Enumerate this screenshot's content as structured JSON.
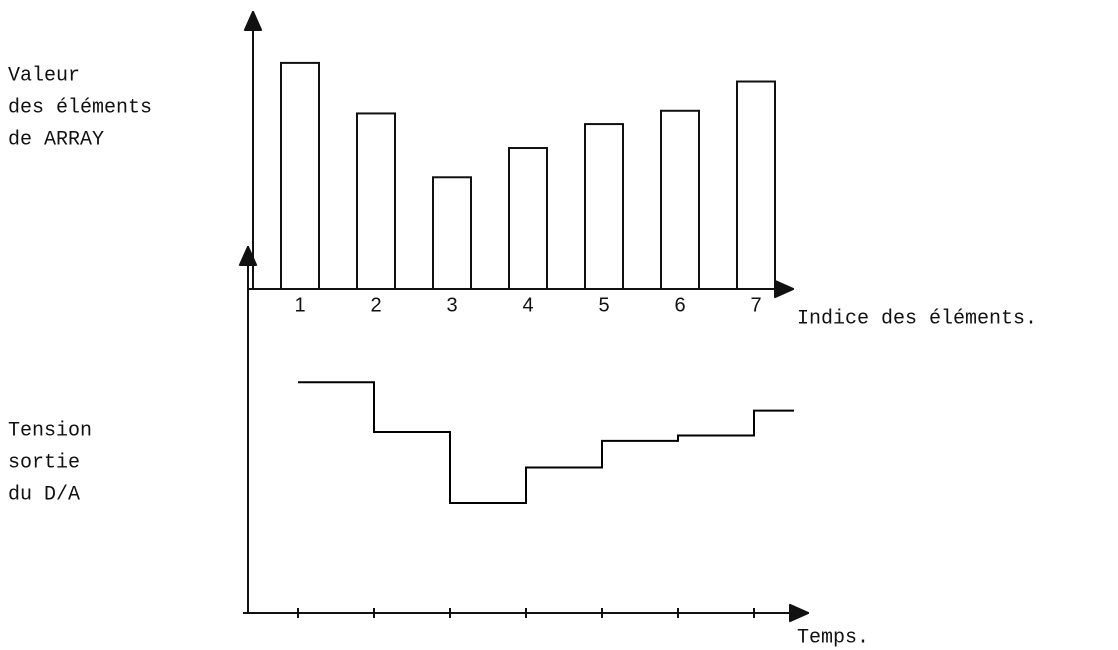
{
  "chart_data": [
    {
      "type": "bar",
      "ylabel": [
        "Valeur",
        "des éléments",
        "de ARRAY"
      ],
      "xlabel": "Indice des éléments.",
      "categories": [
        "1",
        "2",
        "3",
        "4",
        "5",
        "6",
        "7"
      ],
      "values": [
        85,
        66,
        42,
        53,
        62,
        67,
        78
      ],
      "ylim": [
        0,
        100
      ],
      "color": "#ffffff"
    },
    {
      "type": "step",
      "ylabel": [
        "Tension",
        "sortie",
        "du D/A"
      ],
      "xlabel": "Temps.",
      "categories": [
        null,
        null,
        null,
        null,
        null,
        null,
        null
      ],
      "values": [
        65,
        51,
        31,
        41,
        48.5,
        50,
        57
      ],
      "ylim": [
        0,
        100
      ],
      "color": "#000000"
    }
  ]
}
